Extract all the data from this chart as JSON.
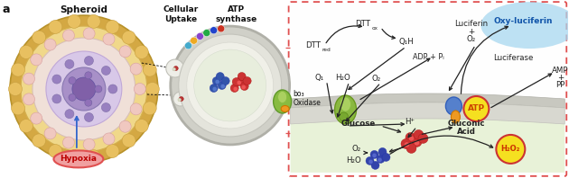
{
  "label_spheroid": "Spheroid",
  "label_cellular": "Cellular\nUptake",
  "label_atp_synthase": "ATP\nsynthase",
  "label_bo3_line1": "bo₃",
  "label_bo3_line2": "Oxidase",
  "label_hypoxia": "Hypoxia",
  "label_dtt_red_main": "DTT",
  "label_dtt_red_sub": "red",
  "label_dtt_ox_main": "DTT",
  "label_dtt_ox_sub": "ox",
  "label_q1h": "Q₁H",
  "label_q1": "Q₁",
  "label_h2o_left": "H₂O",
  "label_o2_left": "O₂",
  "label_adp": "ADP + Pᵢ",
  "label_luciferin_l1": "Luciferin",
  "label_luciferin_l2": "+",
  "label_luciferin_l3": "O₂",
  "label_luciferase": "Luciferase",
  "label_oxy_luciferin": "Oxy-luciferin",
  "label_atp": "ATP",
  "label_amp_l1": "AMP",
  "label_amp_l2": "+",
  "label_amp_l3": "PP",
  "label_glucose": "Glucose",
  "label_h_plus": "H⁺",
  "label_gluconic_l1": "Gluconic",
  "label_gluconic_l2": "Acid",
  "label_o2_bottom": "O₂",
  "label_h2o_bottom": "H₂O",
  "label_h2o2": "H₂O₂",
  "outer_shell_color": "#d4a843",
  "purple_core_color": "#b0a0d0",
  "pathway_border": "#e05050",
  "atp_yellow": "#f5e020",
  "h2o2_yellow": "#f5e020",
  "oxy_luciferin_blue": "#a8d8f0",
  "hypoxia_fill": "#f0a0a0",
  "hypoxia_border": "#e05050",
  "arrow_color": "#222222",
  "text_color": "#222222"
}
